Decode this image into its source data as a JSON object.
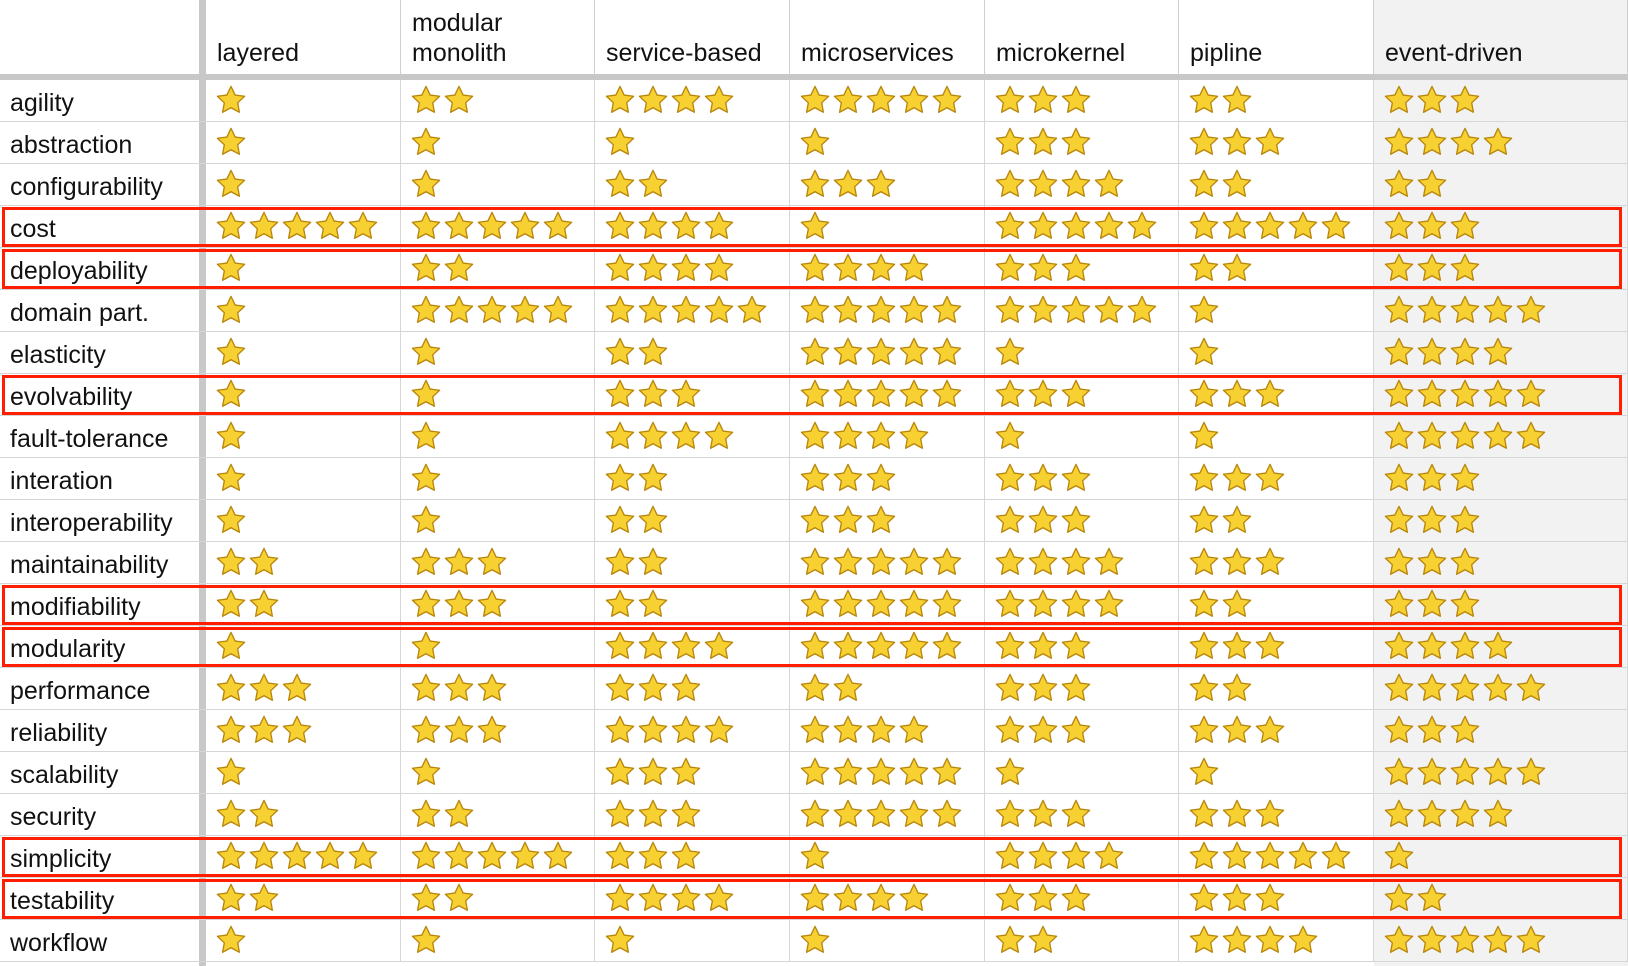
{
  "columns": [
    "layered",
    "modular\nmonolith",
    "service-based",
    "microservices",
    "microkernel",
    "pipline",
    "event-driven"
  ],
  "rows": [
    {
      "label": "agility",
      "ratings": [
        1,
        2,
        4,
        5,
        3,
        2,
        3
      ]
    },
    {
      "label": "abstraction",
      "ratings": [
        1,
        1,
        1,
        1,
        3,
        3,
        4
      ]
    },
    {
      "label": "configurability",
      "ratings": [
        1,
        1,
        2,
        3,
        4,
        2,
        2
      ]
    },
    {
      "label": "cost",
      "ratings": [
        5,
        5,
        4,
        1,
        5,
        5,
        3
      ],
      "highlighted": true
    },
    {
      "label": "deployability",
      "ratings": [
        1,
        2,
        4,
        4,
        3,
        2,
        3
      ],
      "highlighted": true
    },
    {
      "label": "domain part.",
      "ratings": [
        1,
        5,
        5,
        5,
        5,
        1,
        5
      ]
    },
    {
      "label": "elasticity",
      "ratings": [
        1,
        1,
        2,
        5,
        1,
        1,
        4
      ]
    },
    {
      "label": "evolvability",
      "ratings": [
        1,
        1,
        3,
        5,
        3,
        3,
        5
      ],
      "highlighted": true
    },
    {
      "label": "fault-tolerance",
      "ratings": [
        1,
        1,
        4,
        4,
        1,
        1,
        5
      ]
    },
    {
      "label": "interation",
      "ratings": [
        1,
        1,
        2,
        3,
        3,
        3,
        3
      ]
    },
    {
      "label": "interoperability",
      "ratings": [
        1,
        1,
        2,
        3,
        3,
        2,
        3
      ]
    },
    {
      "label": "maintainability",
      "ratings": [
        2,
        3,
        2,
        5,
        4,
        3,
        3
      ]
    },
    {
      "label": "modifiability",
      "ratings": [
        2,
        3,
        2,
        5,
        4,
        2,
        3
      ],
      "highlighted": true
    },
    {
      "label": "modularity",
      "ratings": [
        1,
        1,
        4,
        5,
        3,
        3,
        4
      ],
      "highlighted": true
    },
    {
      "label": "performance",
      "ratings": [
        3,
        3,
        3,
        2,
        3,
        2,
        5
      ]
    },
    {
      "label": "reliability",
      "ratings": [
        3,
        3,
        4,
        4,
        3,
        3,
        3
      ]
    },
    {
      "label": "scalability",
      "ratings": [
        1,
        1,
        3,
        5,
        1,
        1,
        5
      ]
    },
    {
      "label": "security",
      "ratings": [
        2,
        2,
        3,
        5,
        3,
        3,
        4
      ]
    },
    {
      "label": "simplicity",
      "ratings": [
        5,
        5,
        3,
        1,
        4,
        5,
        1
      ],
      "highlighted": true
    },
    {
      "label": "testability",
      "ratings": [
        2,
        2,
        4,
        4,
        3,
        3,
        2
      ],
      "highlighted": true
    },
    {
      "label": "workflow",
      "ratings": [
        1,
        1,
        1,
        1,
        2,
        4,
        5
      ]
    }
  ],
  "colors": {
    "highlight": "#ff1f00",
    "star_fill": "#f7d032",
    "star_outline": "#b8860b",
    "last_column_bg": "#f2f2f2",
    "divider": "#c8c8c8"
  },
  "icons": {
    "rating": "star-icon"
  }
}
